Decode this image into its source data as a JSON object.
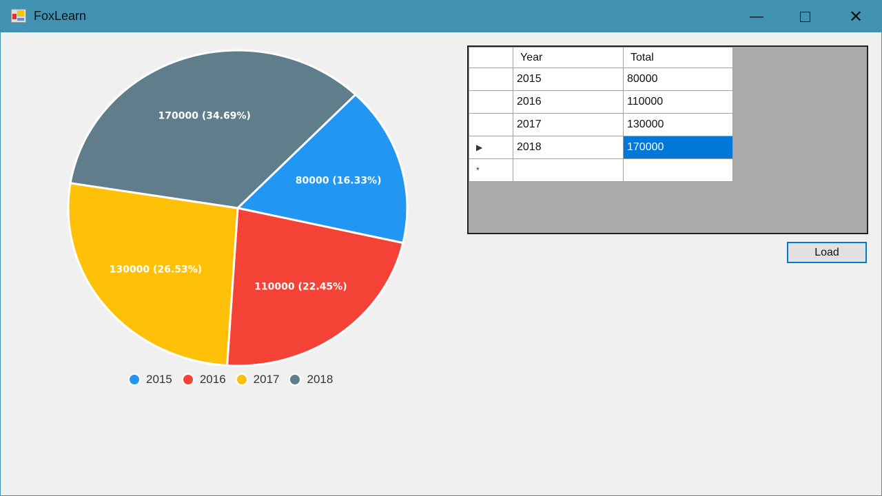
{
  "window": {
    "title": "FoxLearn",
    "minimize_icon": "minimize-icon",
    "maximize_icon": "maximize-icon",
    "close_icon": "close-icon"
  },
  "chart_data": {
    "type": "pie",
    "categories": [
      "2015",
      "2016",
      "2017",
      "2018"
    ],
    "values": [
      80000,
      110000,
      130000,
      170000
    ],
    "labels": [
      "80000 (16.33%)",
      "110000 (22.45%)",
      "130000 (26.53%)",
      "170000 (34.69%)"
    ],
    "colors": [
      "#2196f3",
      "#f44336",
      "#ffc107",
      "#607d8b"
    ],
    "legend": "bottom"
  },
  "grid": {
    "columns": [
      "Year",
      "Total"
    ],
    "rows": [
      [
        "2015",
        "80000"
      ],
      [
        "2016",
        "110000"
      ],
      [
        "2017",
        "130000"
      ],
      [
        "2018",
        "170000"
      ]
    ],
    "current_row_marker": "▶",
    "new_row_marker": "*",
    "selected_cell": "170000",
    "selection_color": "#0078d7"
  },
  "buttons": {
    "load": "Load"
  }
}
